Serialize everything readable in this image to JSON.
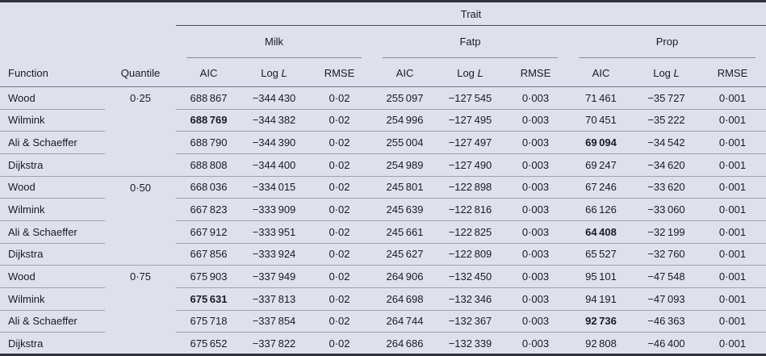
{
  "colors": {
    "background": "#e0e0ed",
    "heavy_rule": "#32323f",
    "light_rule": "#9f9fb2",
    "text": "#1b1b24"
  },
  "table": {
    "header": {
      "trait": "Trait",
      "groups": [
        "Milk",
        "Fatp",
        "Prop"
      ],
      "function": "Function",
      "quantile": "Quantile",
      "metrics": {
        "aic": "AIC",
        "log_pre": "Log",
        "log_it": "L",
        "rmse": "RMSE"
      }
    },
    "blocks": [
      {
        "quantile": "0·25",
        "rows": [
          {
            "function": "Wood",
            "values": [
              "688 867",
              "−344 430",
              "0·02",
              "255 097",
              "−127 545",
              "0·003",
              "71 461",
              "−35 727",
              "0·001"
            ],
            "bold": []
          },
          {
            "function": "Wilmink",
            "values": [
              "688 769",
              "−344 382",
              "0·02",
              "254 996",
              "−127 495",
              "0·003",
              "70 451",
              "−35 222",
              "0·001"
            ],
            "bold": [
              0
            ]
          },
          {
            "function": "Ali & Schaeffer",
            "values": [
              "688 790",
              "−344 390",
              "0·02",
              "255 004",
              "−127 497",
              "0·003",
              "69 094",
              "−34 542",
              "0·001"
            ],
            "bold": [
              6
            ]
          },
          {
            "function": "Dijkstra",
            "values": [
              "688 808",
              "−344 400",
              "0·02",
              "254 989",
              "−127 490",
              "0·003",
              "69 247",
              "−34 620",
              "0·001"
            ],
            "bold": []
          }
        ]
      },
      {
        "quantile": "0·50",
        "rows": [
          {
            "function": "Wood",
            "values": [
              "668 036",
              "−334 015",
              "0·02",
              "245 801",
              "−122 898",
              "0·003",
              "67 246",
              "−33 620",
              "0·001"
            ],
            "bold": []
          },
          {
            "function": "Wilmink",
            "values": [
              "667 823",
              "−333 909",
              "0·02",
              "245 639",
              "−122 816",
              "0·003",
              "66 126",
              "−33 060",
              "0·001"
            ],
            "bold": []
          },
          {
            "function": "Ali & Schaeffer",
            "values": [
              "667 912",
              "−333 951",
              "0·02",
              "245 661",
              "−122 825",
              "0·003",
              "64 408",
              "−32 199",
              "0·001"
            ],
            "bold": [
              6
            ]
          },
          {
            "function": "Dijkstra",
            "values": [
              "667 856",
              "−333 924",
              "0·02",
              "245 627",
              "−122 809",
              "0·003",
              "65 527",
              "−32 760",
              "0·001"
            ],
            "bold": []
          }
        ]
      },
      {
        "quantile": "0·75",
        "rows": [
          {
            "function": "Wood",
            "values": [
              "675 903",
              "−337 949",
              "0·02",
              "264 906",
              "−132 450",
              "0·003",
              "95 101",
              "−47 548",
              "0·001"
            ],
            "bold": []
          },
          {
            "function": "Wilmink",
            "values": [
              "675 631",
              "−337 813",
              "0·02",
              "264 698",
              "−132 346",
              "0·003",
              "94 191",
              "−47 093",
              "0·001"
            ],
            "bold": [
              0
            ]
          },
          {
            "function": "Ali & Schaeffer",
            "values": [
              "675 718",
              "−337 854",
              "0·02",
              "264 744",
              "−132 367",
              "0·003",
              "92 736",
              "−46 363",
              "0·001"
            ],
            "bold": [
              6
            ]
          },
          {
            "function": "Dijkstra",
            "values": [
              "675 652",
              "−337 822",
              "0·02",
              "264 686",
              "−132 339",
              "0·003",
              "92 808",
              "−46 400",
              "0·001"
            ],
            "bold": []
          }
        ]
      }
    ]
  }
}
